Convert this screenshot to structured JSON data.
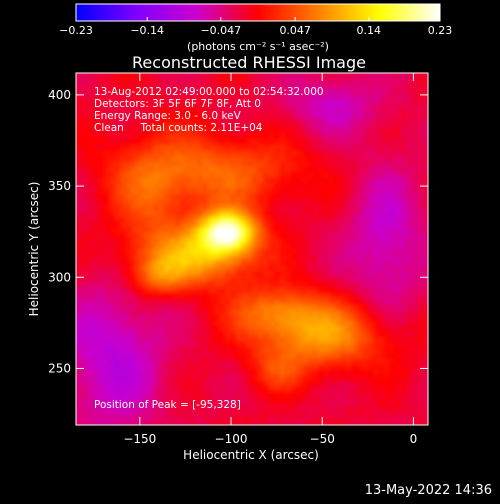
{
  "chart_data": {
    "type": "heatmap",
    "title": "Reconstructed RHESSI Image",
    "xlabel": "Heliocentric X (arcsec)",
    "ylabel": "Heliocentric Y (arcsec)",
    "xlim": [
      -185,
      8
    ],
    "ylim": [
      219,
      412
    ],
    "xticks": [
      -150,
      -100,
      -50,
      0
    ],
    "yticks": [
      250,
      300,
      350,
      400
    ],
    "xtick_labels": [
      "−150",
      "−100",
      "−50",
      "0"
    ],
    "ytick_labels": [
      "250",
      "300",
      "350",
      "400"
    ],
    "colorbar": {
      "min": -0.23,
      "max": 0.23,
      "ticks": [
        -0.23,
        -0.14,
        -0.047,
        0.047,
        0.14,
        0.23
      ],
      "tick_labels": [
        "−0.23",
        "−0.14",
        "−0.047",
        "0.047",
        "0.14",
        "0.23"
      ],
      "unit": "(photons cm⁻² s⁻¹ asec⁻²)",
      "colors": [
        "#0000ff",
        "#8000ff",
        "#cc00cc",
        "#ff0000",
        "#ff8000",
        "#ffff00",
        "#ffffff"
      ]
    },
    "sources": [
      {
        "x": -102,
        "y": 325,
        "sx": 11,
        "sy": 8,
        "amp": 0.23
      },
      {
        "x": -118,
        "y": 311,
        "sx": 22,
        "sy": 11,
        "amp": 0.12
      },
      {
        "x": -140,
        "y": 300,
        "sx": 10,
        "sy": 7,
        "amp": 0.06
      },
      {
        "x": -110,
        "y": 358,
        "sx": 34,
        "sy": 14,
        "amp": 0.08
      },
      {
        "x": -145,
        "y": 340,
        "sx": 15,
        "sy": 25,
        "amp": 0.05
      },
      {
        "x": -50,
        "y": 268,
        "sx": 26,
        "sy": 13,
        "amp": 0.11
      },
      {
        "x": -75,
        "y": 282,
        "sx": 18,
        "sy": 9,
        "amp": 0.07
      },
      {
        "x": -75,
        "y": 248,
        "sx": 10,
        "sy": 8,
        "amp": 0.04
      },
      {
        "x": -165,
        "y": 255,
        "sx": 20,
        "sy": 30,
        "amp": -0.07
      },
      {
        "x": -15,
        "y": 320,
        "sx": 15,
        "sy": 30,
        "amp": -0.06
      },
      {
        "x": -45,
        "y": 395,
        "sx": 20,
        "sy": 12,
        "amp": -0.05
      }
    ],
    "peak": {
      "x": -95,
      "y": 328
    },
    "annotations": [
      "13-Aug-2012 02:49:00.000 to 02:54:32.000",
      "Detectors: 3F 5F 6F 7F 8F, Att 0",
      "Energy Range: 3.0 - 6.0 keV",
      "Clean     Total counts: 2.11E+04",
      "Position of Peak = [-95,328]"
    ]
  },
  "footer": {
    "timestamp": "13-May-2022 14:36"
  },
  "colors": {
    "background": "#000000",
    "text": "#ffffff"
  }
}
